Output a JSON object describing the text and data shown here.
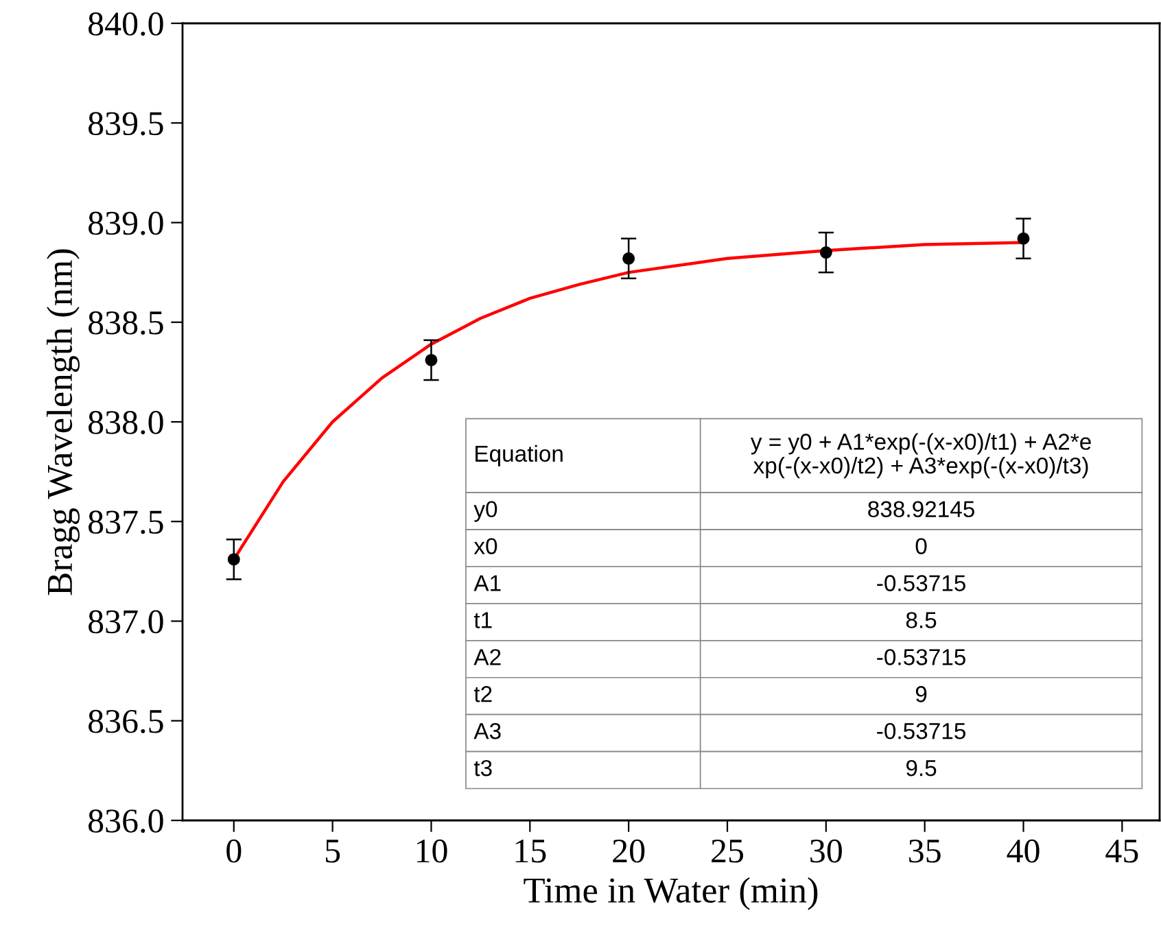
{
  "chart_data": {
    "type": "scatter",
    "xlabel": "Time in Water (min)",
    "ylabel": "Bragg Wavelength (nm)",
    "xlim": [
      -2.6,
      46.9
    ],
    "xticks": [
      0,
      5,
      10,
      15,
      20,
      25,
      30,
      35,
      40,
      45
    ],
    "ylim": [
      836.0,
      840.0
    ],
    "yticks": [
      {
        "value": 836,
        "label": "836.0"
      },
      836.5,
      {
        "value": 837,
        "label": "837.0"
      },
      837.5,
      {
        "value": 838,
        "label": "838.0"
      },
      838.5,
      {
        "value": 839,
        "label": "839.0"
      },
      839.5,
      {
        "value": 840,
        "label": "840.0"
      }
    ],
    "grid": false,
    "legend": false,
    "series": [
      {
        "type": "line",
        "color": "#ff0000",
        "marker": "none",
        "line_style": "solid",
        "x": [
          0,
          2.5,
          5,
          7.5,
          10,
          12.5,
          15,
          17.5,
          20,
          25,
          30,
          35,
          40
        ],
        "values": [
          837.31,
          837.7,
          838.0,
          838.22,
          838.39,
          838.52,
          838.62,
          838.69,
          838.75,
          838.82,
          838.86,
          838.89,
          838.9
        ]
      },
      {
        "color": "#000000",
        "marker": "circle",
        "x": [
          0,
          10,
          20,
          30,
          40
        ],
        "values": [
          837.31,
          838.31,
          838.82,
          838.85,
          838.92
        ],
        "errors": [
          0.1,
          0.1,
          0.1,
          0.1,
          0.1
        ]
      }
    ],
    "annotations": [
      "Equation",
      "y = y0 + A1*exp(-(x-x0)/t1) + A2*e\nxp(-(x-x0)/t2) + A3*exp(-(x-x0)/t3)",
      "y0",
      "838.92145",
      "x0",
      "0",
      "A1",
      "-0.53715",
      "t1",
      "8.5",
      "A2",
      "-0.53715",
      "t2",
      "9",
      "A3",
      "-0.53715",
      "t3",
      "9.5"
    ]
  }
}
